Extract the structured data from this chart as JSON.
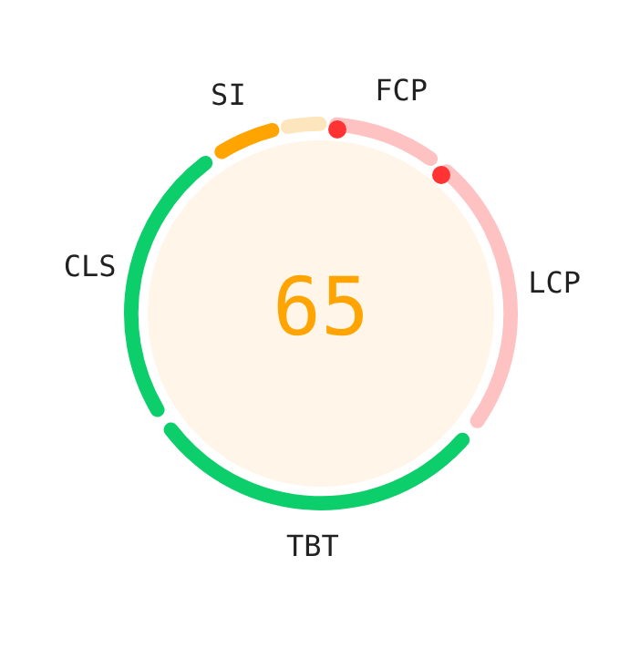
{
  "chart_data": {
    "type": "donut",
    "categories": [
      "FCP",
      "LCP",
      "TBT",
      "CLS",
      "SI",
      null
    ],
    "values": [
      10,
      25,
      30,
      25,
      6,
      4
    ],
    "colors": [
      "#ffc2c2",
      "#ffc2c2",
      "#0cce6b",
      "#0cce6b",
      "#ffa400",
      "#fde5bd"
    ],
    "annotations": [
      "65"
    ],
    "legend": false
  }
}
